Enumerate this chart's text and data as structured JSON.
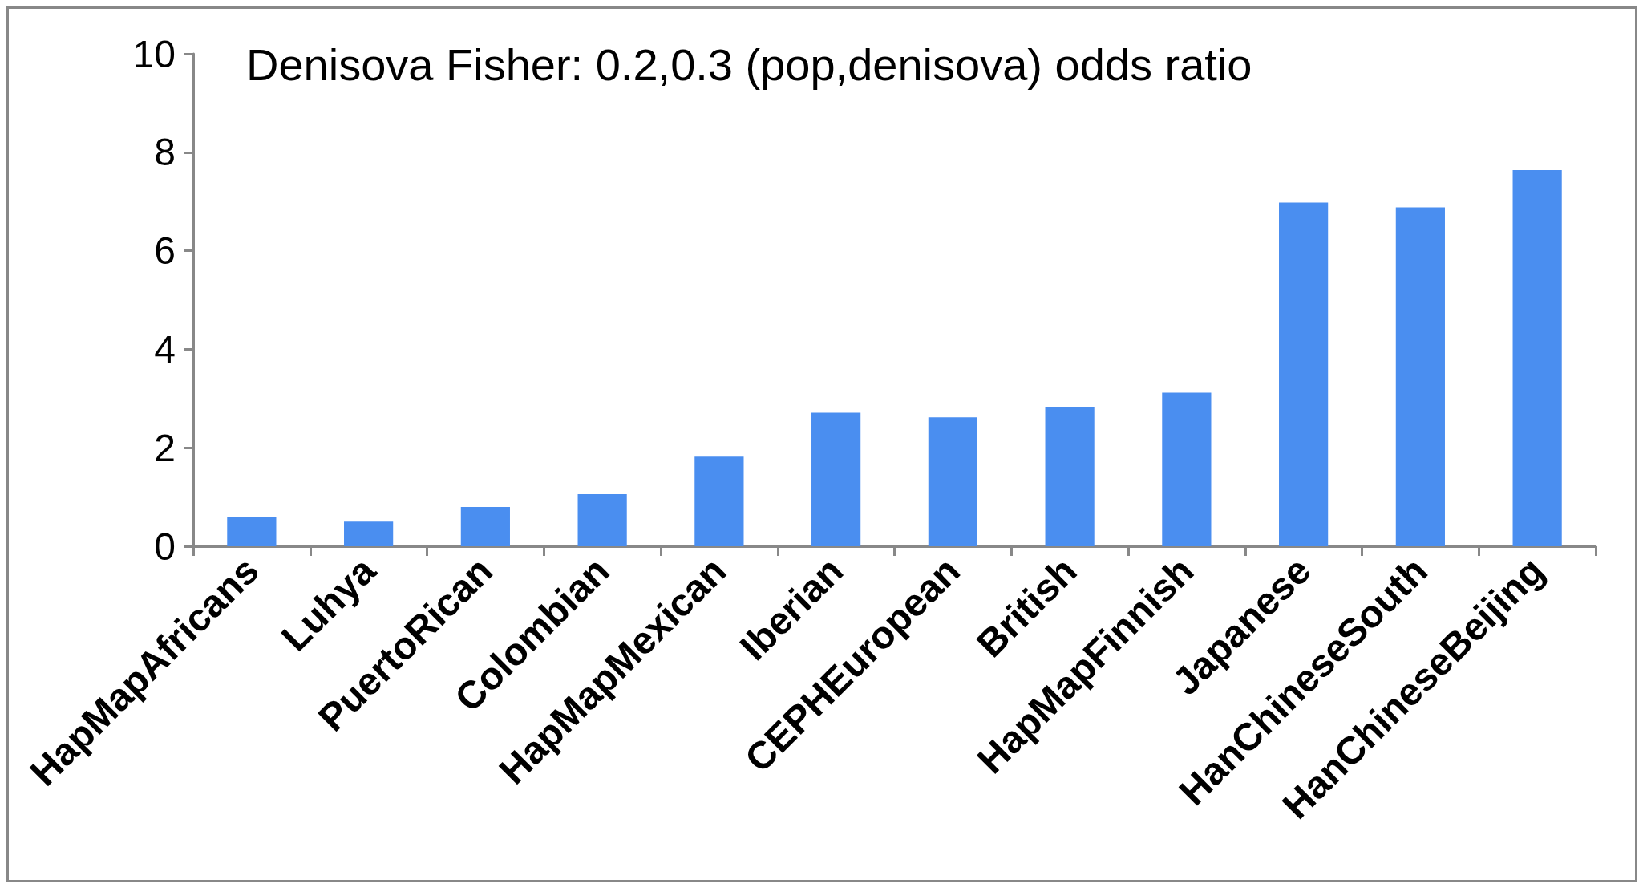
{
  "chart_data": {
    "type": "bar",
    "title": "Denisova Fisher: 0.2,0.3 (pop,denisova) odds ratio",
    "categories": [
      "HapMapAfricans",
      "Luhya",
      "PuertoRican",
      "Colombian",
      "HapMapMexican",
      "Iberian",
      "CEPHEuropean",
      "British",
      "HapMapFinnish",
      "Japanese",
      "HanChineseSouth",
      "HanChineseBeijing"
    ],
    "values": [
      0.6,
      0.5,
      0.8,
      1.06,
      1.82,
      2.71,
      2.62,
      2.82,
      3.12,
      6.98,
      6.88,
      7.64
    ],
    "color": "#4a8ef0",
    "ylim": [
      0,
      10
    ],
    "yticks": [
      0,
      2,
      4,
      6,
      8,
      10
    ],
    "grid": false
  }
}
